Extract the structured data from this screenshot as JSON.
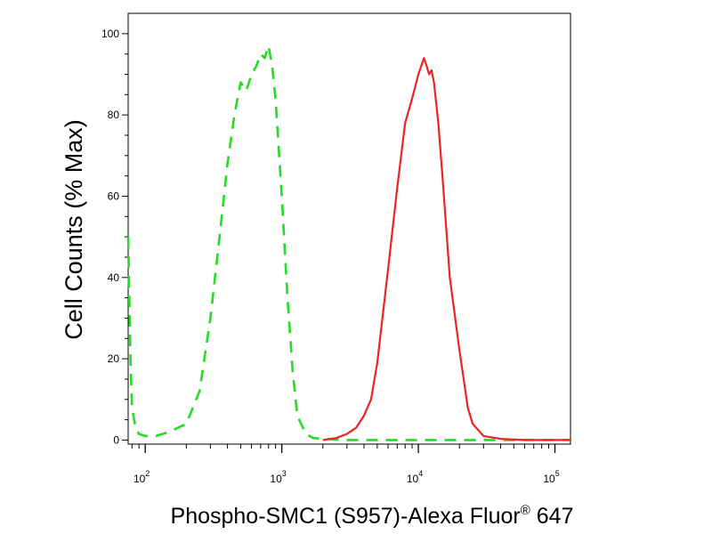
{
  "chart_data": {
    "type": "line",
    "title": "",
    "xlabel": "Phospho-SMC1 (S957)-Alexa Fluor",
    "xlabel_superscript": "®",
    "xlabel_suffix": " 647",
    "ylabel": "Cell Counts (% Max)",
    "x_scale": "log",
    "xlim": [
      75,
      130000
    ],
    "ylim": [
      -1,
      105
    ],
    "x_ticks": [
      {
        "base": "10",
        "exp": "2",
        "value": 100
      },
      {
        "base": "10",
        "exp": "3",
        "value": 1000
      },
      {
        "base": "10",
        "exp": "4",
        "value": 10000
      },
      {
        "base": "10",
        "exp": "5",
        "value": 100000
      }
    ],
    "y_ticks": [
      {
        "label": "0",
        "value": 0
      },
      {
        "label": "20",
        "value": 20
      },
      {
        "label": "40",
        "value": 40
      },
      {
        "label": "60",
        "value": 60
      },
      {
        "label": "80",
        "value": 80
      },
      {
        "label": "100",
        "value": 100
      }
    ],
    "grid": false,
    "legend": "none",
    "series": [
      {
        "color": "#22dd22",
        "style": "dashed",
        "x": [
          75,
          78,
          80,
          85,
          90,
          100,
          120,
          150,
          200,
          250,
          300,
          350,
          400,
          450,
          500,
          550,
          600,
          650,
          700,
          750,
          800,
          850,
          900,
          1000,
          1100,
          1200,
          1300,
          1500,
          1700,
          2000,
          3000,
          5000,
          10000,
          30000,
          130000
        ],
        "y": [
          50,
          20,
          8,
          3,
          1.5,
          1,
          1,
          2,
          4,
          12,
          30,
          50,
          68,
          80,
          88,
          86,
          90,
          92,
          95,
          94,
          97,
          92,
          84,
          60,
          35,
          17,
          6,
          1.5,
          0.5,
          0.3,
          0,
          0,
          0,
          0,
          0
        ]
      },
      {
        "color": "#ee2222",
        "style": "solid",
        "x": [
          2000,
          2500,
          3000,
          3500,
          4000,
          4500,
          5000,
          6000,
          7000,
          8000,
          9000,
          10000,
          11000,
          11500,
          12000,
          12500,
          13000,
          14000,
          15000,
          17000,
          20000,
          23000,
          25000,
          30000,
          40000,
          60000,
          130000
        ],
        "y": [
          0,
          0.5,
          1.5,
          3,
          6,
          10,
          19,
          42,
          62,
          78,
          84,
          90,
          94,
          92,
          90,
          91,
          88,
          78,
          65,
          40,
          22,
          8,
          4,
          1,
          0.3,
          0,
          0
        ]
      }
    ]
  }
}
